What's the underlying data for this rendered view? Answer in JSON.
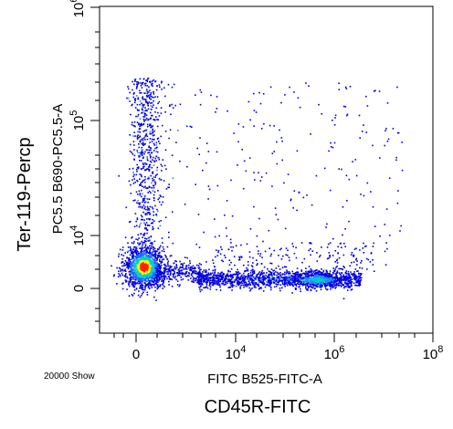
{
  "chart_data": {
    "type": "scatter",
    "title": "",
    "xlabel": "FITC B525-FITC-A",
    "ylabel": "PC5.5 B690-PC5.5-A",
    "x_marker_label": "CD45R-FITC",
    "y_marker_label": "Ter-119-Percp",
    "event_count_label": "20000 Show",
    "x_scale": "biexponential",
    "y_scale": "biexponential",
    "x_ticks": [
      {
        "label": "0",
        "base": "0",
        "exp": ""
      },
      {
        "label": "10^4",
        "base": "10",
        "exp": "4"
      },
      {
        "label": "10^6",
        "base": "10",
        "exp": "6"
      },
      {
        "label": "10^8",
        "base": "10",
        "exp": "8"
      }
    ],
    "y_ticks": [
      {
        "label": "0",
        "base": "0",
        "exp": ""
      },
      {
        "label": "10^4",
        "base": "10",
        "exp": "4"
      },
      {
        "label": "10^5",
        "base": "10",
        "exp": "5"
      },
      {
        "label": "10^6",
        "base": "10",
        "exp": "6"
      }
    ],
    "grid": false,
    "colormap": "density (blue-green-yellow-red)",
    "populations": [
      {
        "description": "double-negative cluster",
        "x_center": 0,
        "y_center": 0,
        "density": "highest"
      },
      {
        "description": "Ter-119 positive tail",
        "x_center": 0,
        "y_range": [
          3000,
          500000
        ],
        "density": "low"
      },
      {
        "description": "CD45R positive band",
        "x_range": [
          3000,
          800000
        ],
        "y_center": 0,
        "density": "medium"
      },
      {
        "description": "CD45R positive dense spot",
        "x_center": 300000,
        "y_center": 0,
        "density": "high"
      }
    ],
    "colors": {
      "low": "#0000dd",
      "mid": "#00cccc",
      "high": "#ffee00",
      "peak": "#ff2200"
    }
  }
}
